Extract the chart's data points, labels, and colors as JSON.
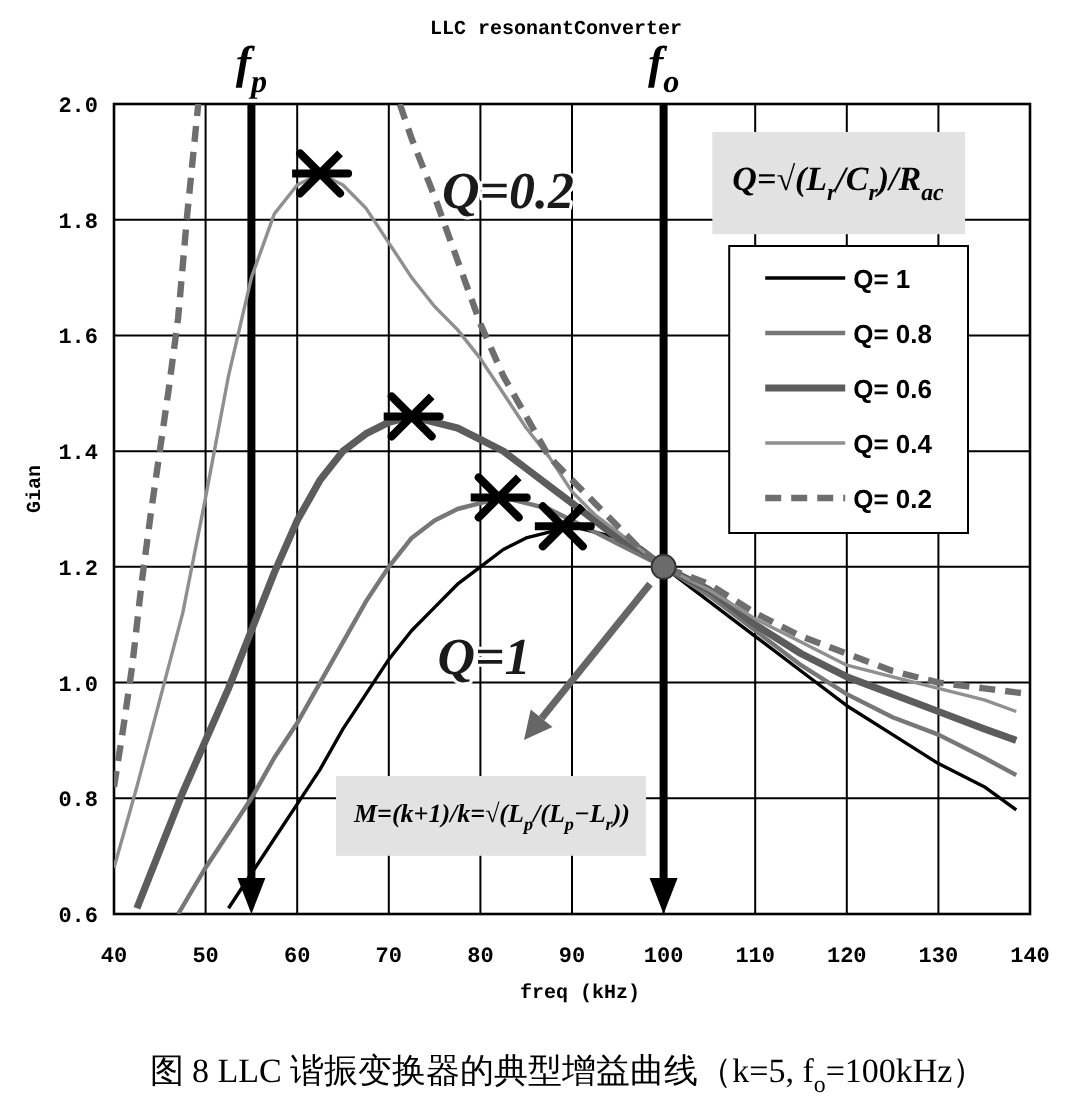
{
  "chart_data": {
    "type": "line",
    "title": "LLC resonantConverter",
    "xlabel": "freq (kHz)",
    "ylabel": "Gian",
    "xlim": [
      40,
      140
    ],
    "ylim": [
      0.6,
      2
    ],
    "xticks": [
      40,
      50,
      60,
      70,
      80,
      90,
      100,
      110,
      120,
      130,
      140
    ],
    "yticks": [
      0.6,
      0.8,
      {
        "value": 1,
        "label": "1.0"
      },
      1.2,
      1.4,
      1.6,
      1.8,
      {
        "value": 2,
        "label": "2.0"
      }
    ],
    "grid": true,
    "legend": "top right",
    "line_style": "solid",
    "series": [
      {
        "name": "Q= 1",
        "color": "#000000",
        "x": [
          52.5,
          55,
          57.5,
          60,
          62.5,
          65,
          67.5,
          70,
          72.5,
          75,
          77.5,
          80,
          82.5,
          85,
          87.5,
          90,
          92.5,
          95,
          97.5,
          100,
          105,
          110,
          115,
          120,
          125,
          130,
          135,
          138.5
        ],
        "values": [
          0.61,
          0.67,
          0.73,
          0.79,
          0.85,
          0.92,
          0.98,
          1.04,
          1.09,
          1.13,
          1.17,
          1.2,
          1.23,
          1.25,
          1.26,
          1.27,
          1.26,
          1.25,
          1.22,
          1.2,
          1.14,
          1.08,
          1.02,
          0.96,
          0.91,
          0.86,
          0.82,
          0.78
        ]
      },
      {
        "name": "Q= 0.8",
        "color": "#777777",
        "x": [
          47,
          50,
          52.5,
          55,
          57.5,
          60,
          62.5,
          65,
          67.5,
          70,
          72.5,
          75,
          77.5,
          80,
          82.5,
          85,
          87.5,
          90,
          92.5,
          95,
          97.5,
          100,
          105,
          110,
          115,
          120,
          125,
          130,
          135,
          138.5
        ],
        "values": [
          0.6,
          0.68,
          0.74,
          0.8,
          0.87,
          0.93,
          1,
          1.07,
          1.14,
          1.2,
          1.25,
          1.28,
          1.3,
          1.31,
          1.32,
          1.31,
          1.3,
          1.28,
          1.26,
          1.24,
          1.22,
          1.2,
          1.15,
          1.09,
          1.03,
          0.98,
          0.94,
          0.91,
          0.87,
          0.84
        ]
      },
      {
        "name": "Q= 0.6",
        "color": "#5c5c5c",
        "x": [
          42.5,
          45,
          47.5,
          50,
          52.5,
          55,
          57.5,
          60,
          62.5,
          65,
          67.5,
          70,
          72.5,
          75,
          77.5,
          80,
          82.5,
          85,
          87.5,
          90,
          92.5,
          95,
          97.5,
          100,
          105,
          110,
          115,
          120,
          125,
          130,
          135,
          138.5
        ],
        "values": [
          0.61,
          0.71,
          0.81,
          0.9,
          0.99,
          1.09,
          1.19,
          1.28,
          1.35,
          1.4,
          1.43,
          1.45,
          1.46,
          1.45,
          1.44,
          1.42,
          1.4,
          1.37,
          1.34,
          1.31,
          1.28,
          1.25,
          1.23,
          1.2,
          1.16,
          1.1,
          1.05,
          1.01,
          0.98,
          0.95,
          0.92,
          0.9
        ]
      },
      {
        "name": "Q= 0.4",
        "color": "#8f8f8f",
        "x": [
          40,
          42.5,
          45,
          47.5,
          50,
          52.5,
          55,
          57.5,
          60,
          62.5,
          65,
          67.5,
          70,
          72.5,
          75,
          77.5,
          80,
          82.5,
          85,
          87.5,
          90,
          92.5,
          95,
          97.5,
          100,
          105,
          110,
          115,
          120,
          125,
          130,
          135,
          138.5
        ],
        "values": [
          0.68,
          0.82,
          0.97,
          1.12,
          1.32,
          1.53,
          1.7,
          1.81,
          1.86,
          1.88,
          1.86,
          1.82,
          1.76,
          1.7,
          1.65,
          1.61,
          1.56,
          1.5,
          1.44,
          1.39,
          1.33,
          1.29,
          1.26,
          1.23,
          1.2,
          1.16,
          1.11,
          1.07,
          1.03,
          1.01,
          0.99,
          0.97,
          0.95
        ]
      },
      {
        "name": "Q= 0.2",
        "color": "#6e6e6e",
        "line_style": "dashed",
        "x": [
          71.2,
          72.5,
          75,
          77.5,
          80,
          82.5,
          85,
          87.5,
          90,
          92.5,
          95,
          97.5,
          100,
          105,
          110,
          115,
          120,
          125,
          130,
          135,
          140
        ],
        "values": [
          2,
          1.94,
          1.84,
          1.73,
          1.62,
          1.53,
          1.46,
          1.39,
          1.35,
          1.31,
          1.27,
          1.23,
          1.2,
          1.17,
          1.12,
          1.08,
          1.05,
          1.02,
          1,
          0.99,
          0.98
        ]
      },
      {
        "color": "#6e6e6e",
        "line_style": "dashed",
        "x": [
          40,
          41,
          42,
          43,
          44,
          45,
          46,
          47,
          48,
          49.2
        ],
        "values": [
          0.82,
          0.92,
          1.03,
          1.17,
          1.29,
          1.4,
          1.51,
          1.63,
          1.81,
          2
        ]
      },
      {
        "type": "scatter",
        "color": "#000000",
        "marker": "cross",
        "x": [
          62.5,
          72.5,
          82,
          89
        ],
        "values": [
          1.88,
          1.46,
          1.32,
          1.27
        ]
      },
      {
        "type": "scatter",
        "color": "#6b6b6b",
        "marker": "circle",
        "x": [
          100
        ],
        "values": [
          1.2
        ]
      }
    ],
    "ref_lines": [
      {
        "axis": "x",
        "value": 55,
        "label": "f$_{p}$",
        "color": "#000000"
      },
      {
        "axis": "x",
        "value": 100,
        "label": "f$_{o}$",
        "color": "#000000"
      }
    ],
    "annotations": [
      "Q=√(L$_{r}$/C$_{r}$)/R$_{ac}$",
      "Q=0.2",
      "Q=1",
      "M=(k+1)/k=√(L$_{p}$/(L$_{p}$−L$_{r}$))",
      "图 8  LLC 谐振变换器的典型增益曲线（k=5, f$_{o}$=100kHz）"
    ]
  }
}
